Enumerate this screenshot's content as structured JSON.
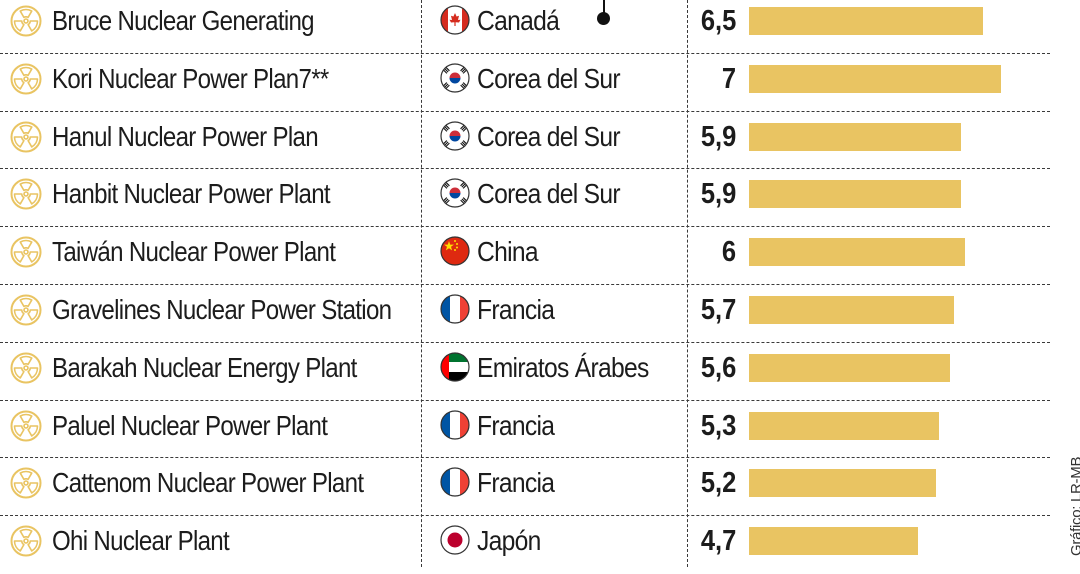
{
  "chart_data": {
    "type": "bar",
    "orientation": "horizontal",
    "title": "",
    "xlabel": "",
    "ylabel": "",
    "xlim": [
      0,
      7
    ],
    "grid": false,
    "categories": [
      "Bruce Nuclear Generating",
      "Kori Nuclear Power Plan7**",
      "Hanul Nuclear Power Plan",
      "Hanbit Nuclear Power Plant",
      "Taiwán Nuclear Power Plant",
      "Gravelines Nuclear Power Station",
      "Barakah Nuclear Energy Plant",
      "Paluel Nuclear Power Plant",
      "Cattenom Nuclear Power Plant",
      "Ohi Nuclear Plant"
    ],
    "countries": [
      "Canadá",
      "Corea del Sur",
      "Corea del Sur",
      "Corea del Sur",
      "China",
      "Francia",
      "Emiratos Árabes",
      "Francia",
      "Francia",
      "Japón"
    ],
    "flags": [
      "canada-flag",
      "south-korea-flag",
      "south-korea-flag",
      "south-korea-flag",
      "china-flag",
      "france-flag",
      "uae-flag",
      "france-flag",
      "france-flag",
      "japan-flag"
    ],
    "values": [
      6.5,
      7,
      5.9,
      5.9,
      6,
      5.7,
      5.6,
      5.3,
      5.2,
      4.7
    ],
    "value_labels": [
      "6,5",
      "7",
      "5,9",
      "5,9",
      "6",
      "5,7",
      "5,6",
      "5,3",
      "5,2",
      "4,7"
    ],
    "bar_color": "#e9c462",
    "icon": "radiation-icon"
  },
  "credit": "Gráfico: LR-MB",
  "colors": {
    "bar": "#e9c462",
    "icon": "#e9c462",
    "text": "#1c1c1c",
    "divider": "#3a3a3a"
  }
}
